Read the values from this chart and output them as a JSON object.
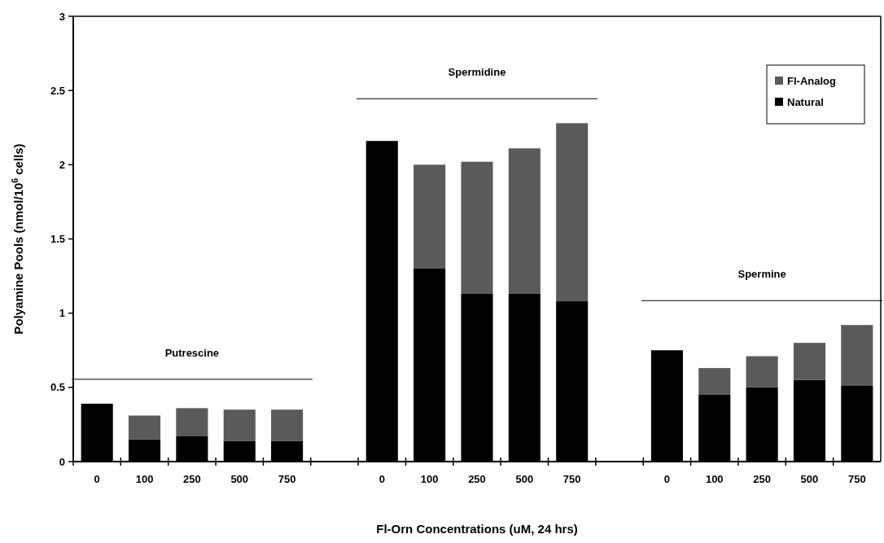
{
  "chart_data": {
    "type": "bar",
    "stacked": true,
    "xlabel": "Fl-Orn Concentrations (uM, 24 hrs)",
    "ylabel": "Polyamine Pools (nmol/10$^{6}$ cells)",
    "categories": [
      "0",
      "100",
      "250",
      "500",
      "750",
      null,
      "0",
      "100",
      "250",
      "500",
      "750",
      null,
      "0",
      "100",
      "250",
      "500",
      "750"
    ],
    "series": [
      {
        "name": "Natural",
        "color": "#000000",
        "values": [
          0.39,
          0.15,
          0.17,
          0.14,
          0.14,
          null,
          2.16,
          1.3,
          1.13,
          1.13,
          1.08,
          null,
          0.75,
          0.45,
          0.5,
          0.55,
          0.51
        ]
      },
      {
        "name": "Fl-Analog",
        "color": "#5a5a5a",
        "values": [
          null,
          0.16,
          0.19,
          0.21,
          0.21,
          null,
          null,
          0.7,
          0.89,
          0.98,
          1.2,
          null,
          null,
          0.18,
          0.21,
          0.25,
          0.41
        ]
      }
    ],
    "ylim": [
      0,
      3
    ],
    "yticks": [
      0,
      0.5,
      1,
      1.5,
      2,
      2.5,
      3
    ],
    "grid": false,
    "legend": "top right",
    "annotations": [
      "Putrescine",
      "Spermidine",
      "Spermine"
    ]
  }
}
